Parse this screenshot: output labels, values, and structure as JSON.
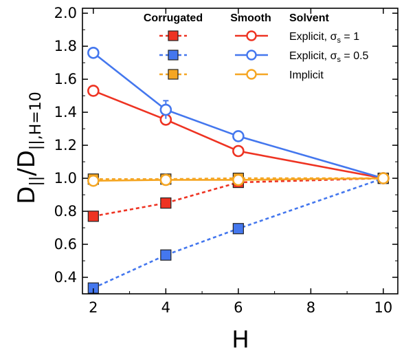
{
  "chart_data": {
    "type": "line",
    "xlabel": "H",
    "ylabel_main": "D",
    "ylabel_sub1": "||",
    "ylabel_mid": "/D",
    "ylabel_sub2": "||,H=10",
    "xlim": [
      1.7,
      10.4
    ],
    "ylim": [
      0.3,
      2.03
    ],
    "xticks": [
      2,
      4,
      6,
      8,
      10
    ],
    "yticks": [
      0.4,
      0.6,
      0.8,
      1.0,
      1.2,
      1.4,
      1.6,
      1.8,
      2.0
    ],
    "ytick_labels": [
      "0.4",
      "0.6",
      "0.8",
      "1.0",
      "1.2",
      "1.4",
      "1.6",
      "1.8",
      "2.0"
    ],
    "legend": {
      "headers": [
        "Corrugated",
        "Smooth",
        "Solvent"
      ],
      "rows": [
        "Explicit, σ",
        "Explicit, σ",
        "Implicit"
      ],
      "row_subscripts": [
        "s",
        "s",
        ""
      ],
      "row_suffixes": [
        " = 1",
        " = 0.5",
        ""
      ],
      "placement": "top-right"
    },
    "colors": {
      "red": "#ee3322",
      "blue": "#4477ee",
      "orange": "#f5a623"
    },
    "series": [
      {
        "color": "red",
        "style": "smooth",
        "x": [
          2,
          4,
          6,
          10
        ],
        "y": [
          1.53,
          1.355,
          1.165,
          1.0
        ],
        "err": [
          0.0,
          0.015,
          0.015,
          0.0
        ]
      },
      {
        "color": "blue",
        "style": "smooth",
        "x": [
          2,
          4,
          6,
          10
        ],
        "y": [
          1.76,
          1.415,
          1.255,
          1.0
        ],
        "err": [
          0.025,
          0.055,
          0.025,
          0.0
        ]
      },
      {
        "color": "orange",
        "style": "smooth",
        "x": [
          2,
          4,
          6,
          10
        ],
        "y": [
          0.985,
          0.99,
          0.99,
          1.0
        ],
        "err": [
          0.01,
          0.01,
          0.01,
          0.0
        ]
      },
      {
        "color": "red",
        "style": "corrugated",
        "x": [
          2,
          4,
          6,
          10
        ],
        "y": [
          0.77,
          0.85,
          0.975,
          1.0
        ],
        "err": [
          0,
          0,
          0,
          0
        ]
      },
      {
        "color": "blue",
        "style": "corrugated",
        "x": [
          2,
          4,
          6,
          10
        ],
        "y": [
          0.335,
          0.535,
          0.695,
          1.0
        ],
        "err": [
          0,
          0,
          0,
          0
        ]
      },
      {
        "color": "orange",
        "style": "corrugated",
        "x": [
          2,
          4,
          6,
          10
        ],
        "y": [
          0.995,
          0.995,
          1.0,
          1.0
        ],
        "err": [
          0,
          0,
          0,
          0
        ]
      }
    ]
  }
}
